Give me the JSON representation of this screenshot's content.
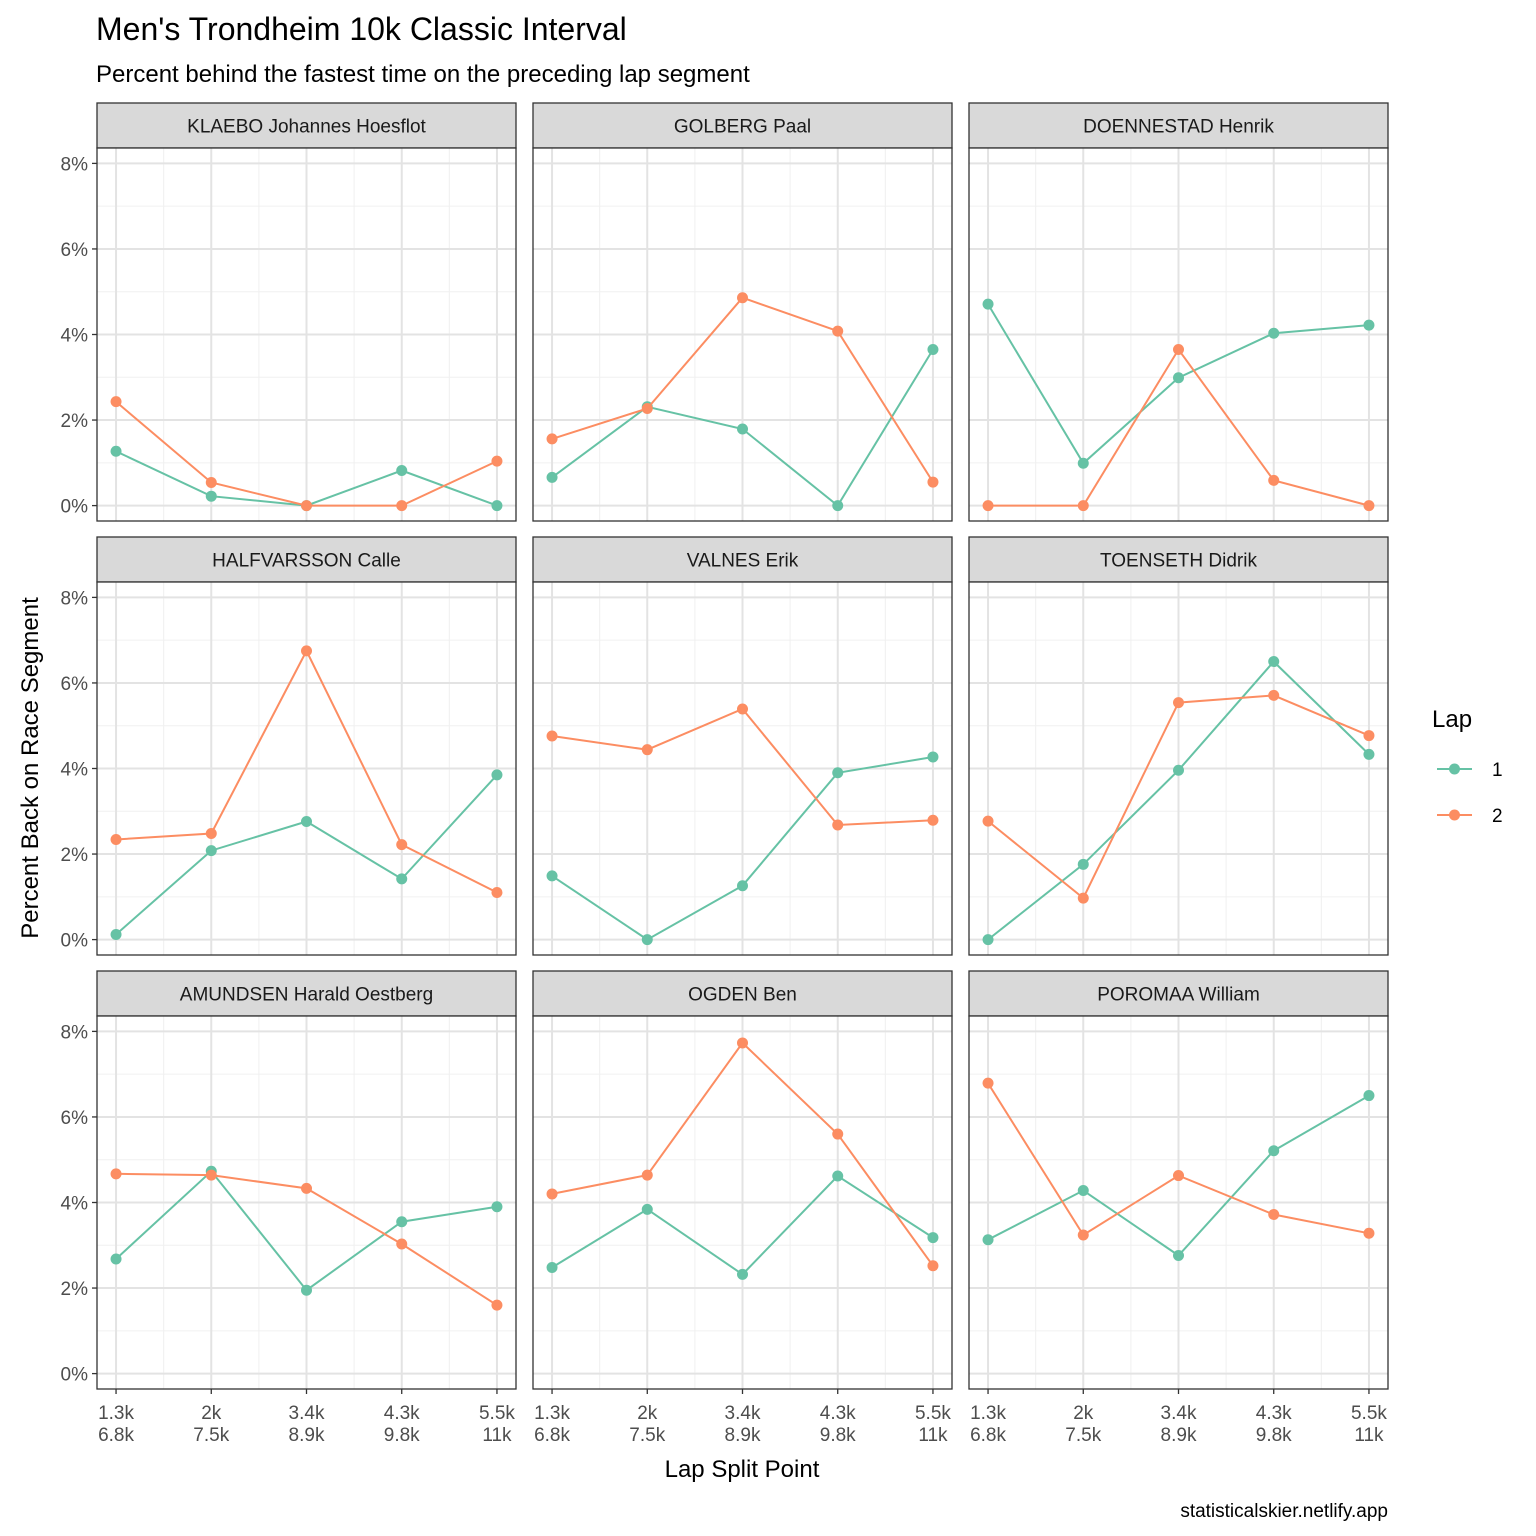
{
  "chart_data": {
    "type": "line",
    "title": "Men's Trondheim 10k Classic Interval",
    "subtitle": "Percent behind the fastest time on the preceding lap segment",
    "xlabel": "Lap Split Point",
    "ylabel": "Percent Back on Race Segment",
    "caption": "statisticalskier.netlify.app",
    "x_categories": [
      {
        "line1": "1.3k",
        "line2": "6.8k"
      },
      {
        "line1": "2k",
        "line2": "7.5k"
      },
      {
        "line1": "3.4k",
        "line2": "8.9k"
      },
      {
        "line1": "4.3k",
        "line2": "9.8k"
      },
      {
        "line1": "5.5k",
        "line2": "11k"
      }
    ],
    "ylim": [
      0,
      8
    ],
    "y_ticks": [
      {
        "value": 0,
        "label": "0%"
      },
      {
        "value": 2,
        "label": "2%"
      },
      {
        "value": 4,
        "label": "4%"
      },
      {
        "value": 6,
        "label": "6%"
      },
      {
        "value": 8,
        "label": "8%"
      }
    ],
    "grid": true,
    "legend": {
      "title": "Lap",
      "position": "right",
      "entries": [
        {
          "key": "1",
          "label": "1",
          "color": "#66c2a5"
        },
        {
          "key": "2",
          "label": "2",
          "color": "#fc8d62"
        }
      ]
    },
    "panels": [
      {
        "name": "KLAEBO Johannes Hoesflot",
        "series": [
          {
            "lap": "1",
            "values": [
              1.27,
              0.22,
              0.0,
              0.82,
              0.0
            ]
          },
          {
            "lap": "2",
            "values": [
              2.43,
              0.54,
              0.0,
              0.0,
              1.04
            ]
          }
        ]
      },
      {
        "name": "GOLBERG Paal",
        "series": [
          {
            "lap": "1",
            "values": [
              0.66,
              2.31,
              1.79,
              0.0,
              3.65
            ]
          },
          {
            "lap": "2",
            "values": [
              1.56,
              2.27,
              4.86,
              4.08,
              0.55
            ]
          }
        ]
      },
      {
        "name": "DOENNESTAD Henrik",
        "series": [
          {
            "lap": "1",
            "values": [
              4.71,
              0.99,
              2.99,
              4.03,
              4.22
            ]
          },
          {
            "lap": "2",
            "values": [
              0.0,
              0.0,
              3.65,
              0.59,
              0.0
            ]
          }
        ]
      },
      {
        "name": "HALFVARSSON Calle",
        "series": [
          {
            "lap": "1",
            "values": [
              0.12,
              2.08,
              2.76,
              1.42,
              3.85
            ]
          },
          {
            "lap": "2",
            "values": [
              2.34,
              2.48,
              6.75,
              2.22,
              1.1
            ]
          }
        ]
      },
      {
        "name": "VALNES Erik",
        "series": [
          {
            "lap": "1",
            "values": [
              1.49,
              0.0,
              1.26,
              3.9,
              4.27
            ]
          },
          {
            "lap": "2",
            "values": [
              4.76,
              4.44,
              5.39,
              2.68,
              2.79
            ]
          }
        ]
      },
      {
        "name": "TOENSETH Didrik",
        "series": [
          {
            "lap": "1",
            "values": [
              0.0,
              1.76,
              3.96,
              6.5,
              4.33
            ]
          },
          {
            "lap": "2",
            "values": [
              2.77,
              0.97,
              5.54,
              5.71,
              4.77
            ]
          }
        ]
      },
      {
        "name": "AMUNDSEN Harald Oestberg",
        "series": [
          {
            "lap": "1",
            "values": [
              2.68,
              4.73,
              1.95,
              3.55,
              3.9
            ]
          },
          {
            "lap": "2",
            "values": [
              4.67,
              4.64,
              4.33,
              3.03,
              1.6
            ]
          }
        ]
      },
      {
        "name": "OGDEN Ben",
        "series": [
          {
            "lap": "1",
            "values": [
              2.48,
              3.84,
              2.32,
              4.62,
              3.18
            ]
          },
          {
            "lap": "2",
            "values": [
              4.2,
              4.64,
              7.73,
              5.6,
              2.52
            ]
          }
        ]
      },
      {
        "name": "POROMAA William",
        "series": [
          {
            "lap": "1",
            "values": [
              3.13,
              4.28,
              2.76,
              5.21,
              6.5
            ]
          },
          {
            "lap": "2",
            "values": [
              6.79,
              3.24,
              4.63,
              3.72,
              3.28
            ]
          }
        ]
      }
    ]
  }
}
